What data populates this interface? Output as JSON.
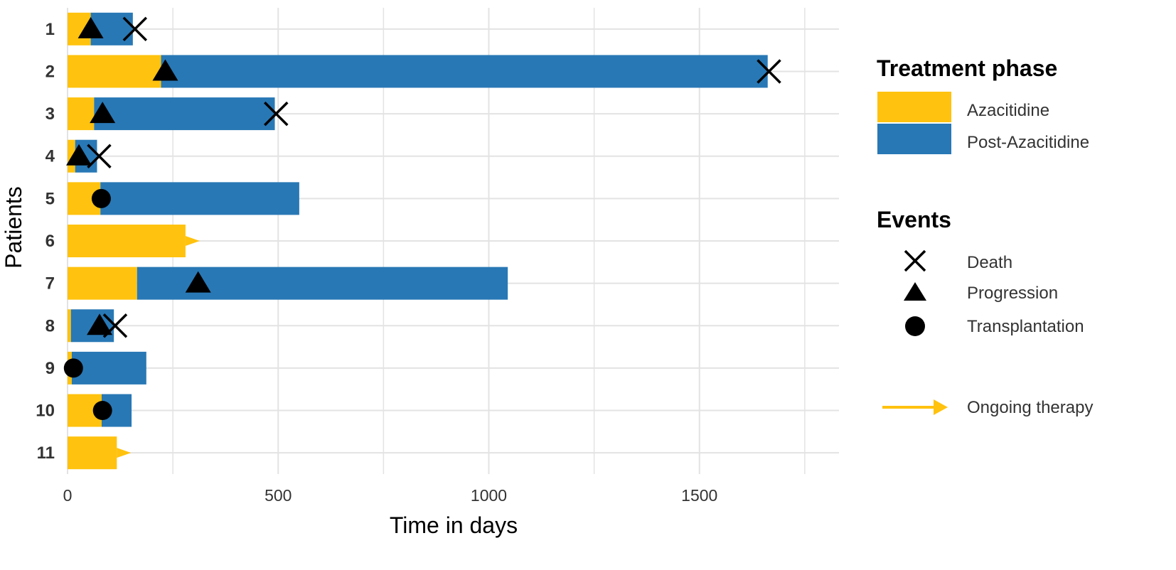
{
  "chart_data": {
    "type": "swimmer",
    "xlabel": "Time in days",
    "ylabel": "Patients",
    "xlim": [
      0,
      1830
    ],
    "xticks": [
      0,
      500,
      1000,
      1500
    ],
    "xtick_labels": [
      "0",
      "500",
      "1000",
      "1500"
    ],
    "grid": true,
    "colors": {
      "azacitidine": "#FFC20E",
      "post_azacitidine": "#2878B5",
      "marker": "#000000",
      "grid": "#E3E3E3"
    },
    "patients": [
      {
        "label": "1",
        "azacitidine_days": 55,
        "total_days": 155,
        "ongoing": false,
        "events": [
          {
            "type": "progression",
            "day": 55
          },
          {
            "type": "death",
            "day": 160
          }
        ]
      },
      {
        "label": "2",
        "azacitidine_days": 222,
        "total_days": 1662,
        "ongoing": false,
        "events": [
          {
            "type": "progression",
            "day": 232
          },
          {
            "type": "death",
            "day": 1665
          }
        ]
      },
      {
        "label": "3",
        "azacitidine_days": 63,
        "total_days": 492,
        "ongoing": false,
        "events": [
          {
            "type": "progression",
            "day": 83
          },
          {
            "type": "death",
            "day": 495
          }
        ]
      },
      {
        "label": "4",
        "azacitidine_days": 18,
        "total_days": 70,
        "ongoing": false,
        "events": [
          {
            "type": "progression",
            "day": 27
          },
          {
            "type": "death",
            "day": 75
          }
        ]
      },
      {
        "label": "5",
        "azacitidine_days": 78,
        "total_days": 550,
        "ongoing": false,
        "events": [
          {
            "type": "transplantation",
            "day": 80
          }
        ]
      },
      {
        "label": "6",
        "azacitidine_days": 280,
        "total_days": 280,
        "ongoing": true,
        "events": []
      },
      {
        "label": "7",
        "azacitidine_days": 165,
        "total_days": 1045,
        "ongoing": false,
        "events": [
          {
            "type": "progression",
            "day": 310
          }
        ]
      },
      {
        "label": "8",
        "azacitidine_days": 8,
        "total_days": 110,
        "ongoing": false,
        "events": [
          {
            "type": "progression",
            "day": 76
          },
          {
            "type": "death",
            "day": 113
          }
        ]
      },
      {
        "label": "9",
        "azacitidine_days": 10,
        "total_days": 187,
        "ongoing": false,
        "events": [
          {
            "type": "transplantation",
            "day": 14
          }
        ]
      },
      {
        "label": "10",
        "azacitidine_days": 81,
        "total_days": 152,
        "ongoing": false,
        "events": [
          {
            "type": "transplantation",
            "day": 83
          }
        ]
      },
      {
        "label": "11",
        "azacitidine_days": 117,
        "total_days": 117,
        "ongoing": true,
        "events": []
      }
    ]
  },
  "legend": {
    "phase_title": "Treatment phase",
    "phases": [
      {
        "key": "azacitidine",
        "label": "Azacitidine"
      },
      {
        "key": "post_azacitidine",
        "label": "Post-Azacitidine"
      }
    ],
    "events_title": "Events",
    "events": [
      {
        "key": "death",
        "label": "Death"
      },
      {
        "key": "progression",
        "label": "Progression"
      },
      {
        "key": "transplantation",
        "label": "Transplantation"
      }
    ],
    "ongoing_label": "Ongoing therapy"
  }
}
